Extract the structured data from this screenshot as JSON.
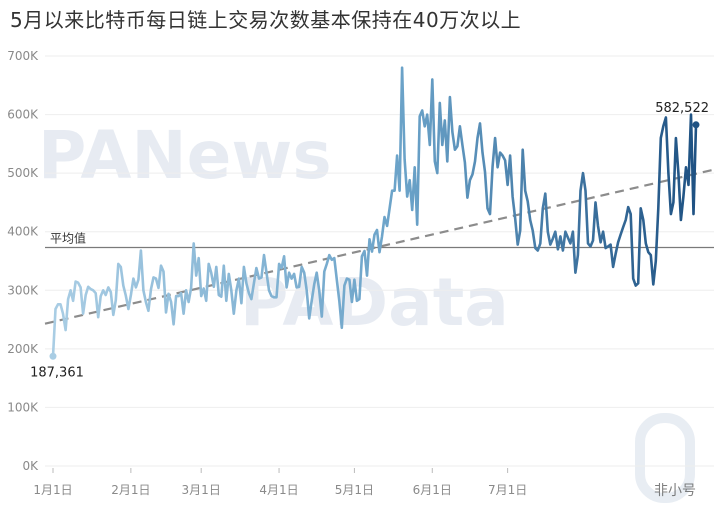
{
  "chart_data": {
    "type": "line",
    "title": "5月以来比特币每日链上交易次数基本保持在40万次以上",
    "xlabel": "",
    "ylabel": "",
    "ylim": [
      0,
      700000
    ],
    "y_ticks": [
      {
        "value": 0,
        "label": "0K"
      },
      {
        "value": 100000,
        "label": "100K"
      },
      {
        "value": 200000,
        "label": "200K"
      },
      {
        "value": 300000,
        "label": "300K"
      },
      {
        "value": 400000,
        "label": "400K"
      },
      {
        "value": 500000,
        "label": "500K"
      },
      {
        "value": 600000,
        "label": "600K"
      },
      {
        "value": 700000,
        "label": "700K"
      }
    ],
    "x_ticks": [
      {
        "day": 0,
        "label": "1月1日"
      },
      {
        "day": 31,
        "label": "2月1日"
      },
      {
        "day": 59,
        "label": "3月1日"
      },
      {
        "day": 90,
        "label": "4月1日"
      },
      {
        "day": 120,
        "label": "5月1日"
      },
      {
        "day": 151,
        "label": "6月1日"
      },
      {
        "day": 181,
        "label": "7月1日"
      }
    ],
    "series": [
      {
        "values": [
          187361,
          268000,
          276000,
          276000,
          260000,
          232000,
          285000,
          300000,
          282000,
          315000,
          313000,
          305000,
          260000,
          292000,
          306000,
          302000,
          300000,
          295000,
          254000,
          290000,
          300000,
          292000,
          305000,
          297000,
          258000,
          283000,
          345000,
          340000,
          308000,
          291000,
          268000,
          292000,
          320000,
          305000,
          318000,
          368000,
          300000,
          280000,
          265000,
          302000,
          322000,
          320000,
          304000,
          342000,
          332000,
          262000,
          294000,
          280000,
          242000,
          290000,
          290000,
          295000,
          260000,
          300000,
          280000,
          304000,
          380000,
          325000,
          355000,
          290000,
          303000,
          282000,
          345000,
          330000,
          306000,
          340000,
          292000,
          289000,
          342000,
          282000,
          328000,
          300000,
          260000,
          300000,
          320000,
          278000,
          340000,
          312000,
          295000,
          285000,
          312000,
          338000,
          320000,
          322000,
          360000,
          330000,
          300000,
          290000,
          288000,
          288000,
          345000,
          338000,
          358000,
          305000,
          330000,
          320000,
          328000,
          305000,
          306000,
          340000,
          330000,
          300000,
          252000,
          282000,
          310000,
          330000,
          300000,
          255000,
          332000,
          345000,
          360000,
          352000,
          355000,
          318000,
          282000,
          236000,
          308000,
          320000,
          318000,
          280000,
          318000,
          282000,
          285000,
          358000,
          367000,
          325000,
          387000,
          366000,
          395000,
          403000,
          365000,
          392000,
          425000,
          410000,
          440000,
          470000,
          470000,
          530000,
          470000,
          680000,
          524000,
          460000,
          488000,
          437000,
          510000,
          412000,
          597000,
          607000,
          580000,
          600000,
          548000,
          660000,
          520000,
          500000,
          620000,
          548000,
          590000,
          520000,
          630000,
          570000,
          540000,
          546000,
          580000,
          548000,
          518000,
          458000,
          488000,
          498000,
          520000,
          560000,
          585000,
          535000,
          502000,
          440000,
          430000,
          512000,
          560000,
          510000,
          535000,
          530000,
          522000,
          480000,
          530000,
          460000,
          422000,
          378000,
          402000,
          540000,
          470000,
          452000,
          420000,
          402000,
          372000,
          368000,
          380000,
          440000,
          465000,
          400000,
          378000,
          388000,
          400000,
          370000,
          392000,
          368000,
          400000,
          390000,
          380000,
          400000,
          330000,
          360000,
          470000,
          500000,
          470000,
          380000,
          375000,
          385000,
          450000,
          410000,
          382000,
          400000,
          372000,
          375000,
          378000,
          340000,
          362000,
          382000,
          395000,
          408000,
          420000,
          442000,
          430000,
          320000,
          308000,
          312000,
          440000,
          420000,
          380000,
          365000,
          360000,
          310000,
          350000,
          440000,
          560000,
          580000,
          595000,
          500000,
          430000,
          450000,
          560000,
          500000,
          420000,
          460000,
          510000,
          480000,
          600000,
          430000,
          582522
        ]
      }
    ],
    "reference_lines": [
      {
        "label": "平均值",
        "value": 373000
      }
    ],
    "trendline": {
      "style": "dashed",
      "start_value": 243000,
      "end_value": 506000
    },
    "annotations": [
      {
        "text": "187,361",
        "index": 0
      },
      {
        "text": "582,522",
        "index": "last"
      }
    ],
    "colors": {
      "line_start": "#a9cde4",
      "line_mid": "#6aa2c8",
      "line_end": "#1f5283",
      "trend": "#8c8c8c",
      "avg_line": "#7a7a7a",
      "grid": "#eeeeee"
    },
    "grid": true,
    "legend": "none"
  },
  "watermarks": {
    "top": "PANews",
    "middle": "PAData",
    "corner": "非小号"
  }
}
